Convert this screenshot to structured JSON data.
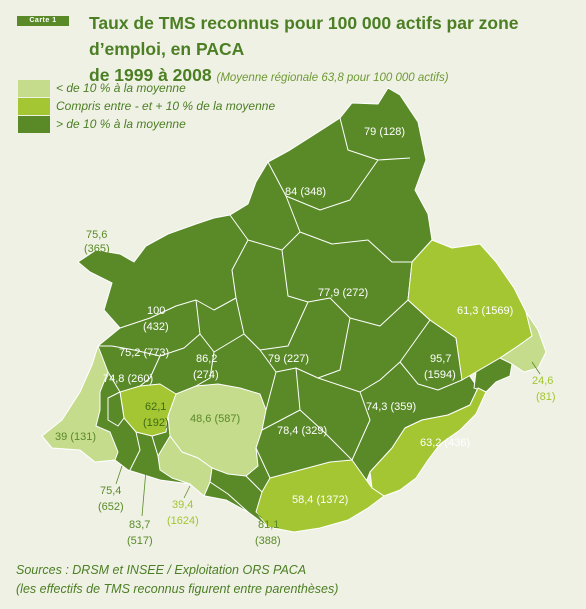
{
  "map_label": "Carte 1",
  "title": "Taux de TMS reconnus pour 100 000 actifs par zone d’emploi, en PACA",
  "title_line2": "de 1999 à 2008",
  "subtitle": "(Moyenne régionale 63,8 pour 100 000 actifs)",
  "colors": {
    "low": "#c4dc8c",
    "mid": "#a3c632",
    "high": "#5a8a28",
    "background": "#eef1e4",
    "borders": "#ffffff"
  },
  "legend": [
    {
      "color_key": "low",
      "label": "< de 10 % à la moyenne"
    },
    {
      "color_key": "mid",
      "label": "Compris entre - et + 10 % de la moyenne"
    },
    {
      "color_key": "high",
      "label": "> de 10 % à la moyenne"
    }
  ],
  "zones": [
    {
      "rate": "79",
      "count": "(128)",
      "class": "high"
    },
    {
      "rate": "84",
      "count": "(348)",
      "class": "high"
    },
    {
      "rate": "75,6",
      "count": "(365)",
      "class": "high"
    },
    {
      "rate": "100",
      "count": "(432)",
      "class": "high"
    },
    {
      "rate": "77,9",
      "count": "(272)",
      "class": "high"
    },
    {
      "rate": "61,3",
      "count": "(1569)",
      "class": "mid"
    },
    {
      "rate": "75,2",
      "count": "(773)",
      "class": "high"
    },
    {
      "rate": "86,2",
      "count": "(274)",
      "class": "high"
    },
    {
      "rate": "79",
      "count": "(227)",
      "class": "high"
    },
    {
      "rate": "95,7",
      "count": "(1594)",
      "class": "high"
    },
    {
      "rate": "24,6",
      "count": "(81)",
      "class": "low"
    },
    {
      "rate": "74,8",
      "count": "(260)",
      "class": "high"
    },
    {
      "rate": "62,1",
      "count": "(192)",
      "class": "mid"
    },
    {
      "rate": "48,6",
      "count": "(587)",
      "class": "low"
    },
    {
      "rate": "74,3",
      "count": "(359)",
      "class": "high"
    },
    {
      "rate": "39",
      "count": "(131)",
      "class": "low"
    },
    {
      "rate": "78,4",
      "count": "(329)",
      "class": "high"
    },
    {
      "rate": "63,2",
      "count": "(436)",
      "class": "mid"
    },
    {
      "rate": "58,4",
      "count": "(1372)",
      "class": "mid"
    },
    {
      "rate": "75,4",
      "count": "(652)",
      "class": "high"
    },
    {
      "rate": "39,4",
      "count": "(1624)",
      "class": "low"
    },
    {
      "rate": "83,7",
      "count": "(517)",
      "class": "high"
    },
    {
      "rate": "81,1",
      "count": "(388)",
      "class": "high"
    }
  ],
  "sources": "Sources : DRSM et INSEE / Exploitation ORS PACA",
  "note": "(les effectifs de TMS reconnus figurent entre parenthèses)"
}
